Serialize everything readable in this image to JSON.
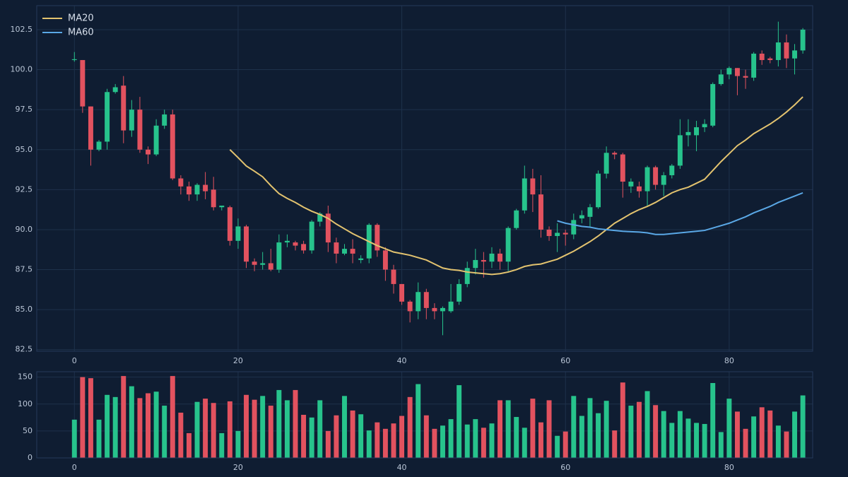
{
  "chart_data": {
    "type": "candlestick",
    "x": [
      0,
      1,
      2,
      3,
      4,
      5,
      6,
      7,
      8,
      9,
      10,
      11,
      12,
      13,
      14,
      15,
      16,
      17,
      18,
      19,
      20,
      21,
      22,
      23,
      24,
      25,
      26,
      27,
      28,
      29,
      30,
      31,
      32,
      33,
      34,
      35,
      36,
      37,
      38,
      39,
      40,
      41,
      42,
      43,
      44,
      45,
      46,
      47,
      48,
      49,
      50,
      51,
      52,
      53,
      54,
      55,
      56,
      57,
      58,
      59,
      60,
      61,
      62,
      63,
      64,
      65,
      66,
      67,
      68,
      69,
      70,
      71,
      72,
      73,
      74,
      75,
      76,
      77,
      78,
      79,
      80,
      81,
      82,
      83,
      84,
      85,
      86,
      87,
      88,
      89
    ],
    "open": [
      100.6,
      100.6,
      97.7,
      95.0,
      95.5,
      98.6,
      99.0,
      96.2,
      97.5,
      95.0,
      94.7,
      96.5,
      97.2,
      93.2,
      92.7,
      92.2,
      92.8,
      92.5,
      91.4,
      91.4,
      89.3,
      90.2,
      88.0,
      87.8,
      87.9,
      87.5,
      89.2,
      89.2,
      89.1,
      88.7,
      90.5,
      91.0,
      89.2,
      88.5,
      88.8,
      88.1,
      88.2,
      90.3,
      88.7,
      87.5,
      86.6,
      85.5,
      84.9,
      86.1,
      85.1,
      84.9,
      84.9,
      85.5,
      86.6,
      87.6,
      88.1,
      88.0,
      88.5,
      88.0,
      90.1,
      91.2,
      93.2,
      92.2,
      90.0,
      89.6,
      89.8,
      89.7,
      90.7,
      90.8,
      91.4,
      93.5,
      94.8,
      94.7,
      92.7,
      92.7,
      92.4,
      93.9,
      92.8,
      93.4,
      94.0,
      95.9,
      95.9,
      96.4,
      96.5,
      99.1,
      99.7,
      100.1,
      99.6,
      99.5,
      101.0,
      100.7,
      100.6,
      101.7,
      100.7,
      101.2
    ],
    "high": [
      101.1,
      100.6,
      97.7,
      95.6,
      98.8,
      99.1,
      99.6,
      98.1,
      98.3,
      95.2,
      96.9,
      97.5,
      97.5,
      93.4,
      93.0,
      92.9,
      93.6,
      93.3,
      91.5,
      91.5,
      90.7,
      90.3,
      88.2,
      88.6,
      88.8,
      89.7,
      89.7,
      89.3,
      89.3,
      90.6,
      91.1,
      91.5,
      89.5,
      89.1,
      89.4,
      88.4,
      90.4,
      90.4,
      88.9,
      87.8,
      86.6,
      85.6,
      86.7,
      86.3,
      85.4,
      85.2,
      86.6,
      86.9,
      88.0,
      88.8,
      88.6,
      88.9,
      88.8,
      90.2,
      91.3,
      94.0,
      93.8,
      93.4,
      90.2,
      90.4,
      90.0,
      91.0,
      91.2,
      91.6,
      93.7,
      95.2,
      94.9,
      94.8,
      93.2,
      93.0,
      94.0,
      94.0,
      93.6,
      94.1,
      96.9,
      96.9,
      96.8,
      96.9,
      99.2,
      100.0,
      100.2,
      100.1,
      100.0,
      101.1,
      101.2,
      100.8,
      103.0,
      102.2,
      101.6,
      102.6
    ],
    "low": [
      100.5,
      97.3,
      94.0,
      94.9,
      95.0,
      98.5,
      95.4,
      95.8,
      94.8,
      94.1,
      94.6,
      96.3,
      93.1,
      92.2,
      91.8,
      91.8,
      91.9,
      91.2,
      91.2,
      89.0,
      88.8,
      87.6,
      87.4,
      87.5,
      87.4,
      87.3,
      88.9,
      88.7,
      88.5,
      88.5,
      90.2,
      88.6,
      87.9,
      88.4,
      87.9,
      87.9,
      87.9,
      88.3,
      86.8,
      86.0,
      85.3,
      84.2,
      84.4,
      84.4,
      84.4,
      83.4,
      84.8,
      85.3,
      86.4,
      87.2,
      87.0,
      87.6,
      87.5,
      87.4,
      90.0,
      91.0,
      91.1,
      89.5,
      89.3,
      88.6,
      89.0,
      89.4,
      90.4,
      90.2,
      91.3,
      93.2,
      94.4,
      92.0,
      92.3,
      92.0,
      91.5,
      92.5,
      92.1,
      93.2,
      93.8,
      95.2,
      94.9,
      96.1,
      96.4,
      99.0,
      99.4,
      98.4,
      98.8,
      99.3,
      100.3,
      100.4,
      100.2,
      100.1,
      99.7,
      101.0
    ],
    "close": [
      100.65,
      97.7,
      95.0,
      95.5,
      98.6,
      98.9,
      96.2,
      97.5,
      95.0,
      94.7,
      96.5,
      97.2,
      93.2,
      92.7,
      92.2,
      92.8,
      92.4,
      91.4,
      91.5,
      89.3,
      90.2,
      88.0,
      87.8,
      87.9,
      87.5,
      89.2,
      89.3,
      89.0,
      88.7,
      90.5,
      91.0,
      89.2,
      88.5,
      88.8,
      88.5,
      88.2,
      90.3,
      88.7,
      87.5,
      86.6,
      85.5,
      84.9,
      86.1,
      85.1,
      84.9,
      85.1,
      85.5,
      86.6,
      87.6,
      88.1,
      88.0,
      88.5,
      88.0,
      90.1,
      91.2,
      93.2,
      92.2,
      90.0,
      89.6,
      89.8,
      89.7,
      90.6,
      90.9,
      91.4,
      93.5,
      94.8,
      94.7,
      93.0,
      93.0,
      92.4,
      93.9,
      92.8,
      93.4,
      94.0,
      95.9,
      96.1,
      96.4,
      96.6,
      99.1,
      99.7,
      100.1,
      99.6,
      99.5,
      101.0,
      100.6,
      100.6,
      101.7,
      100.7,
      101.2,
      102.5
    ],
    "volume": [
      71,
      150,
      148,
      71,
      117,
      113,
      152,
      133,
      111,
      120,
      123,
      97,
      152,
      84,
      46,
      104,
      110,
      102,
      46,
      105,
      50,
      117,
      108,
      115,
      97,
      126,
      107,
      126,
      80,
      75,
      107,
      50,
      79,
      115,
      88,
      81,
      51,
      66,
      54,
      64,
      78,
      113,
      137,
      79,
      54,
      60,
      72,
      135,
      62,
      72,
      56,
      64,
      107,
      107,
      76,
      56,
      110,
      66,
      107,
      41,
      49,
      115,
      78,
      111,
      83,
      106,
      51,
      140,
      97,
      104,
      124,
      98,
      87,
      65,
      87,
      73,
      65,
      63,
      139,
      48,
      110,
      86,
      54,
      77,
      94,
      88,
      60,
      49,
      86,
      116
    ],
    "up_color": "#27c38c",
    "down_color": "#e2525f",
    "series": [
      {
        "name": "MA20",
        "color": "#e3c36f",
        "values": [
          null,
          null,
          null,
          null,
          null,
          null,
          null,
          null,
          null,
          null,
          null,
          null,
          null,
          null,
          null,
          null,
          null,
          null,
          null,
          95.0,
          94.5,
          93.98,
          93.65,
          93.3,
          92.75,
          92.25,
          91.95,
          91.7,
          91.4,
          91.15,
          90.95,
          90.7,
          90.35,
          90.05,
          89.75,
          89.5,
          89.25,
          89.0,
          88.8,
          88.6,
          88.5,
          88.4,
          88.25,
          88.1,
          87.85,
          87.6,
          87.5,
          87.45,
          87.35,
          87.3,
          87.25,
          87.2,
          87.25,
          87.35,
          87.5,
          87.7,
          87.8,
          87.85,
          88.0,
          88.15,
          88.4,
          88.65,
          88.95,
          89.25,
          89.6,
          90.0,
          90.4,
          90.7,
          91.0,
          91.25,
          91.45,
          91.7,
          92.0,
          92.3,
          92.5,
          92.65,
          92.9,
          93.15,
          93.7,
          94.25,
          94.75,
          95.25,
          95.6,
          96.0,
          96.3,
          96.6,
          96.95,
          97.35,
          97.8,
          98.3
        ]
      },
      {
        "name": "MA60",
        "color": "#5aa8e6",
        "values": [
          null,
          null,
          null,
          null,
          null,
          null,
          null,
          null,
          null,
          null,
          null,
          null,
          null,
          null,
          null,
          null,
          null,
          null,
          null,
          null,
          null,
          null,
          null,
          null,
          null,
          null,
          null,
          null,
          null,
          null,
          null,
          null,
          null,
          null,
          null,
          null,
          null,
          null,
          null,
          null,
          null,
          null,
          null,
          null,
          null,
          null,
          null,
          null,
          null,
          null,
          null,
          null,
          null,
          null,
          null,
          null,
          null,
          null,
          null,
          90.55,
          90.4,
          90.3,
          90.2,
          90.15,
          90.05,
          90.0,
          89.95,
          89.9,
          89.87,
          89.85,
          89.8,
          89.7,
          89.7,
          89.75,
          89.8,
          89.85,
          89.9,
          89.95,
          90.1,
          90.25,
          90.4,
          90.6,
          90.8,
          91.05,
          91.25,
          91.45,
          91.7,
          91.9,
          92.1,
          92.3
        ]
      }
    ],
    "xlim": [
      -4.6,
      90.2
    ],
    "xticks": [
      0,
      20,
      40,
      60,
      80
    ],
    "ylim": [
      82.4,
      104.0
    ],
    "yticks": [
      82.5,
      {
        "value": 85,
        "label": "85.0"
      },
      87.5,
      {
        "value": 90,
        "label": "90.0"
      },
      92.5,
      {
        "value": 95,
        "label": "95.0"
      },
      97.5,
      {
        "value": 100,
        "label": "100.0"
      },
      102.5
    ],
    "volume_ylim": [
      0,
      160
    ],
    "volume_yticks": [
      0,
      50,
      100,
      150
    ],
    "grid": true,
    "legend": "upper left"
  }
}
